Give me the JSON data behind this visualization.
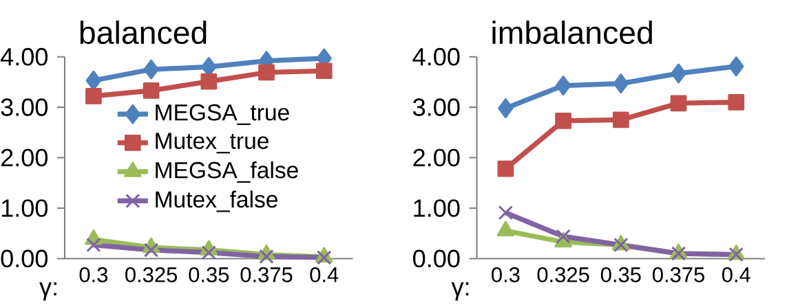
{
  "chart_data": [
    {
      "type": "line",
      "title": "balanced",
      "xlabel": "γ:",
      "categories": [
        "0.3",
        "0.325",
        "0.35",
        "0.375",
        "0.4"
      ],
      "ylim": [
        0,
        4
      ],
      "yticks": [
        {
          "value": 0,
          "label": "0.00"
        },
        {
          "value": 1,
          "label": "1.00"
        },
        {
          "value": 2,
          "label": "2.00"
        },
        {
          "value": 3,
          "label": "3.00"
        },
        {
          "value": 4,
          "label": "4.00"
        }
      ],
      "legend": "center",
      "series": [
        {
          "name": "MEGSA_true",
          "color": "#4f81bd",
          "marker": "diamond",
          "values": [
            3.53,
            3.75,
            3.8,
            3.92,
            3.97
          ]
        },
        {
          "name": "Mutex_true",
          "color": "#c0504d",
          "marker": "square",
          "values": [
            3.22,
            3.33,
            3.51,
            3.69,
            3.72
          ]
        },
        {
          "name": "MEGSA_false",
          "color": "#9bbb59",
          "marker": "triangle",
          "values": [
            0.38,
            0.22,
            0.17,
            0.08,
            0.03
          ]
        },
        {
          "name": "Mutex_false",
          "color": "#8064a2",
          "marker": "cross",
          "values": [
            0.27,
            0.17,
            0.12,
            0.04,
            0.02
          ]
        }
      ]
    },
    {
      "type": "line",
      "title": "imbalanced",
      "xlabel": "γ:",
      "categories": [
        "0.3",
        "0.325",
        "0.35",
        "0.375",
        "0.4"
      ],
      "ylim": [
        0,
        4
      ],
      "yticks": [
        {
          "value": 0,
          "label": "0.00"
        },
        {
          "value": 1,
          "label": "1.00"
        },
        {
          "value": 2,
          "label": "2.00"
        },
        {
          "value": 3,
          "label": "3.00"
        },
        {
          "value": 4,
          "label": "4.00"
        }
      ],
      "series": [
        {
          "color": "#4f81bd",
          "marker": "diamond",
          "values": [
            2.98,
            3.43,
            3.47,
            3.67,
            3.81
          ]
        },
        {
          "color": "#c0504d",
          "marker": "square",
          "values": [
            1.78,
            2.73,
            2.75,
            3.08,
            3.1
          ]
        },
        {
          "color": "#9bbb59",
          "marker": "triangle",
          "values": [
            0.55,
            0.33,
            0.27,
            0.1,
            0.08
          ]
        },
        {
          "color": "#8064a2",
          "marker": "cross",
          "values": [
            0.91,
            0.44,
            0.27,
            0.1,
            0.08
          ]
        }
      ]
    }
  ]
}
